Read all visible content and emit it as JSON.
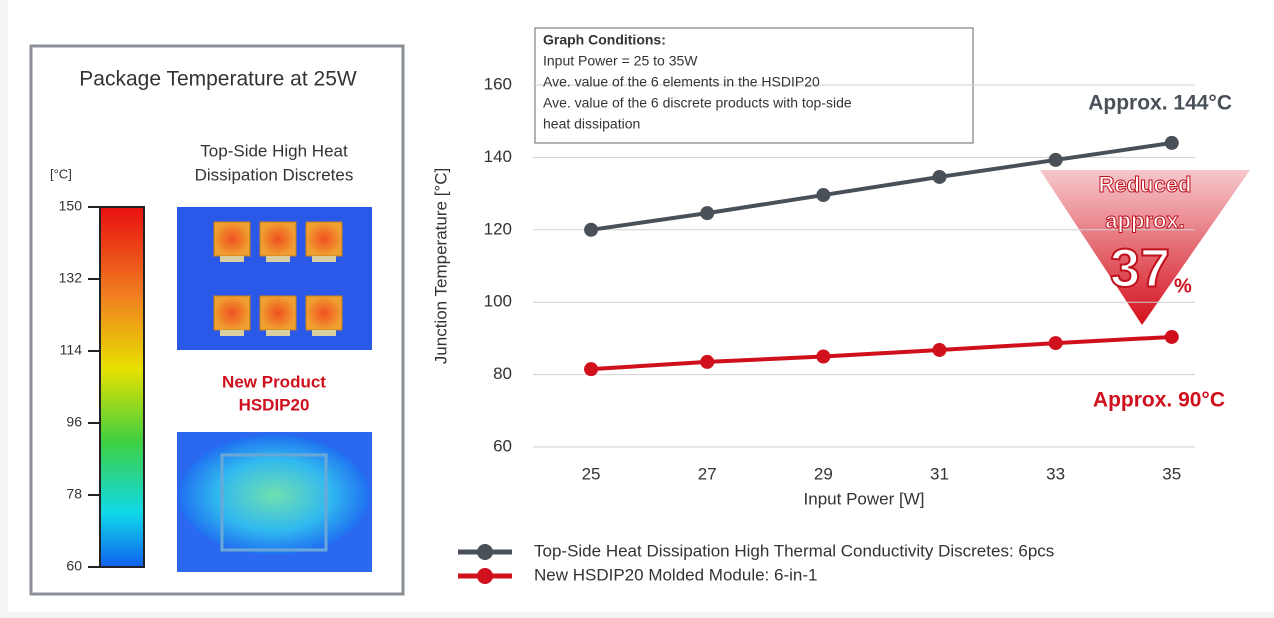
{
  "panel": {
    "title": "Package Temperature at 25W",
    "unit": "[°C]",
    "colorbar": {
      "lim": [
        60,
        150
      ],
      "ticks": [
        150,
        132,
        114,
        96,
        78,
        60
      ]
    },
    "image_1_label": [
      "Top-Side High Heat",
      "Dissipation Discretes"
    ],
    "image_2_label": [
      "New Product",
      "HSDIP20"
    ]
  },
  "chart_data": {
    "type": "line",
    "x_label": "Input Power [W]",
    "y_label": "Junction Temperature [°C]",
    "x": [
      25,
      27,
      29,
      31,
      33,
      35
    ],
    "series": [
      {
        "name": "Top-Side Heat Dissipation High Thermal Conductivity Discretes: 6pcs",
        "color": "#4a5058",
        "values": [
          120,
          124.6,
          129.6,
          134.6,
          139.3,
          144
        ]
      },
      {
        "name": "New HSDIP20 Molded Module: 6-in-1",
        "color": "#d0101c",
        "values": [
          81.5,
          83.5,
          85,
          86.8,
          88.7,
          90.4
        ]
      }
    ],
    "xlim": [
      24,
      35.4
    ],
    "xticks": [
      25,
      27,
      29,
      31,
      33,
      35
    ],
    "ylim": [
      60,
      160
    ],
    "yticks": [
      60,
      80,
      100,
      120,
      140,
      160
    ],
    "grid": true,
    "conditions": [
      "Graph Conditions:",
      "Input Power = 25 to 35W",
      "Ave. value of the 6 elements in the HSDIP20",
      "Ave. value of the 6 discrete products with top-side",
      "heat dissipation"
    ],
    "annotations": {
      "top": "Approx. 144°C",
      "bottom": "Approx. 90°C",
      "reduced": "Reduced",
      "approx": "approx.",
      "pct": "37",
      "pct_sign": "%"
    }
  }
}
